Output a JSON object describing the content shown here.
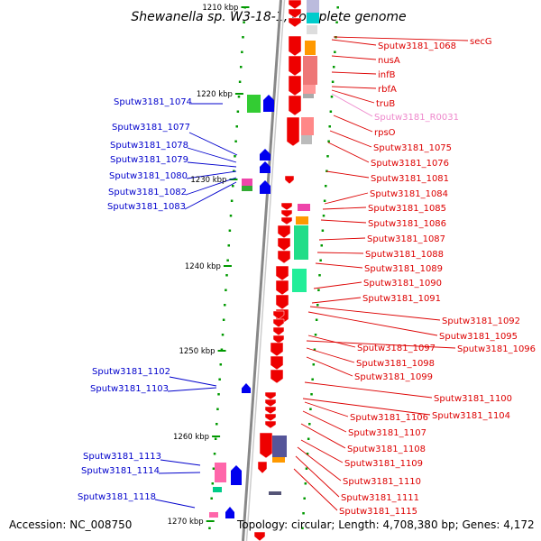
{
  "title": "Shewanella sp. W3-18-1, complete genome",
  "footer": {
    "accession": "Accession: NC_008750",
    "topology": "Topology: circular; Length: 4,708,380 bp; Genes: 4,172"
  },
  "colors": {
    "forward_label": "#0000cc",
    "reverse_label": "#dd0000",
    "rna_label": "#ee88cc",
    "backbone": "#888888",
    "ticks": "#009900"
  },
  "scale_labels": [
    "1210 kbp",
    "1220 kbp",
    "1230 kbp",
    "1240 kbp",
    "1250 kbp",
    "1260 kbp",
    "1270 kbp"
  ],
  "left_labels": [
    "Sputw3181_1074",
    "Sputw3181_1077",
    "Sputw3181_1078",
    "Sputw3181_1079",
    "Sputw3181_1080",
    "Sputw3181_1082",
    "Sputw3181_1083",
    "Sputw3181_1102",
    "Sputw3181_1103",
    "Sputw3181_1113",
    "Sputw3181_1114",
    "Sputw3181_1118"
  ],
  "right_labels": [
    "secG",
    "Sputw3181_1068",
    "nusA",
    "infB",
    "rbfA",
    "truB",
    "Sputw3181_R0031",
    "rpsO",
    "Sputw3181_1075",
    "Sputw3181_1076",
    "Sputw3181_1081",
    "Sputw3181_1084",
    "Sputw3181_1085",
    "Sputw3181_1086",
    "Sputw3181_1087",
    "Sputw3181_1088",
    "Sputw3181_1089",
    "Sputw3181_1090",
    "Sputw3181_1091",
    "Sputw3181_1092",
    "Sputw3181_1095",
    "Sputw3181_1096",
    "Sputw3181_1097",
    "Sputw3181_1098",
    "Sputw3181_1099",
    "Sputw3181_1100",
    "Sputw3181_1106",
    "Sputw3181_1104",
    "Sputw3181_1107",
    "Sputw3181_1108",
    "Sputw3181_1109",
    "Sputw3181_1110",
    "Sputw3181_1111",
    "Sputw3181_1115"
  ]
}
